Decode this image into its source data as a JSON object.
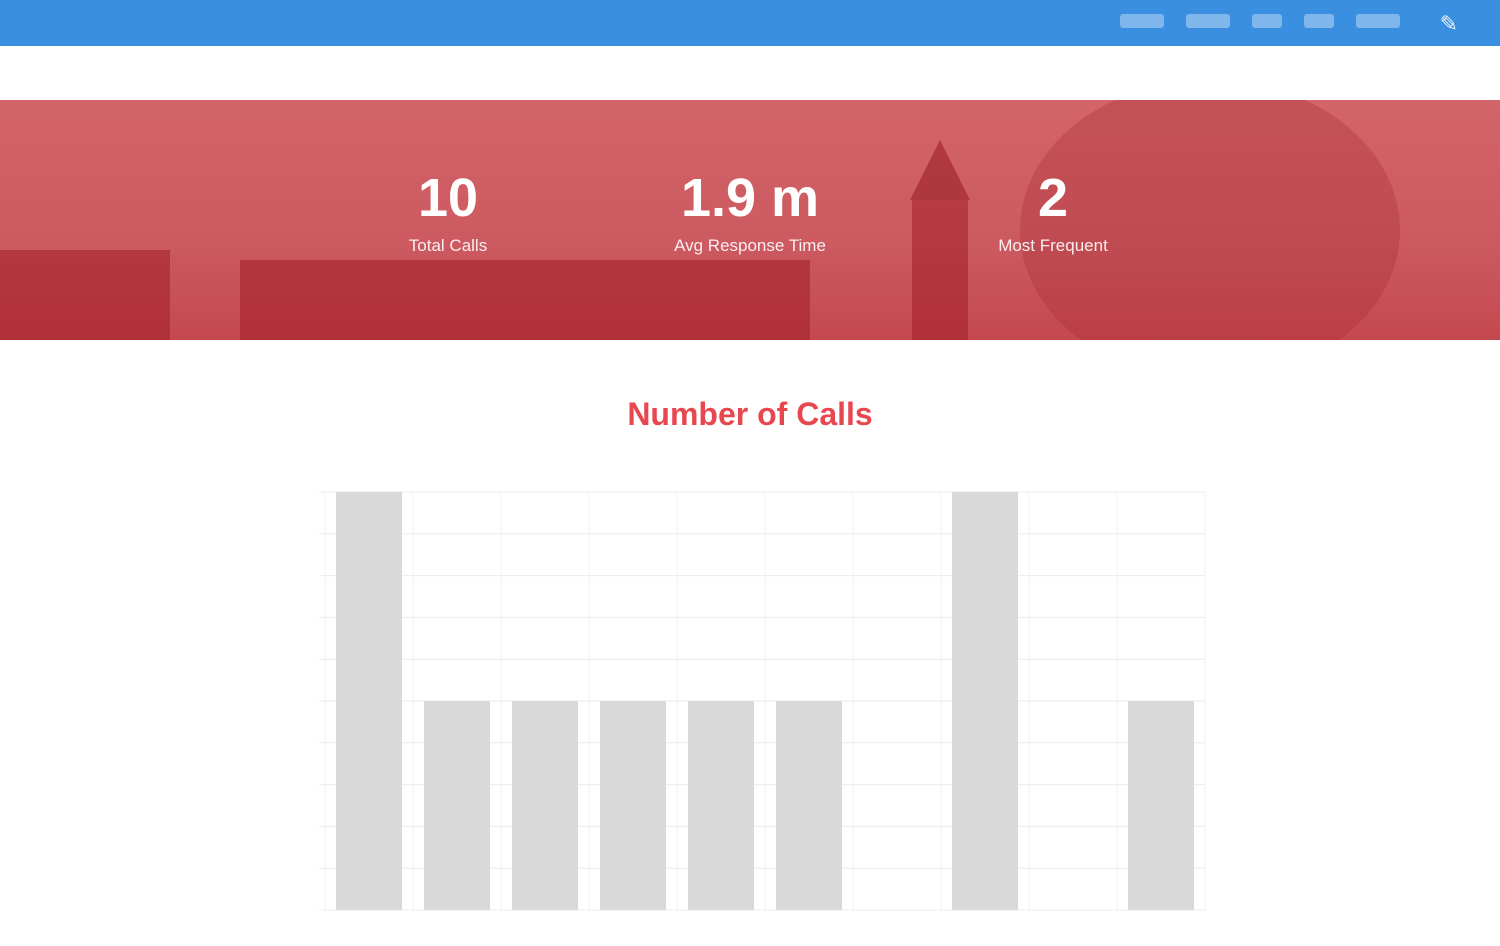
{
  "header": {
    "brand": "",
    "nav_items": [
      "",
      "",
      "",
      "",
      ""
    ]
  },
  "breadcrumb": "",
  "stats": [
    {
      "value": "10",
      "label": "Total Calls"
    },
    {
      "value": "1.9 m",
      "label": "Avg Response Time"
    },
    {
      "value": "2",
      "label": "Most Frequent"
    }
  ],
  "section_title": "Number of Calls",
  "colors": {
    "header": "#3b8fe0",
    "banner": "#cc5a60",
    "accent": "#e8474f",
    "bar": "#d9d9d9"
  },
  "chart_data": {
    "type": "bar",
    "title": "",
    "categories": [
      "",
      "",
      "",
      "",
      "",
      "",
      "",
      "",
      "",
      ""
    ],
    "values": [
      2,
      1,
      1,
      1,
      1,
      1,
      0,
      2,
      0,
      1
    ],
    "ylim": [
      0,
      2
    ],
    "grid": true,
    "xlabel": "",
    "ylabel": ""
  }
}
